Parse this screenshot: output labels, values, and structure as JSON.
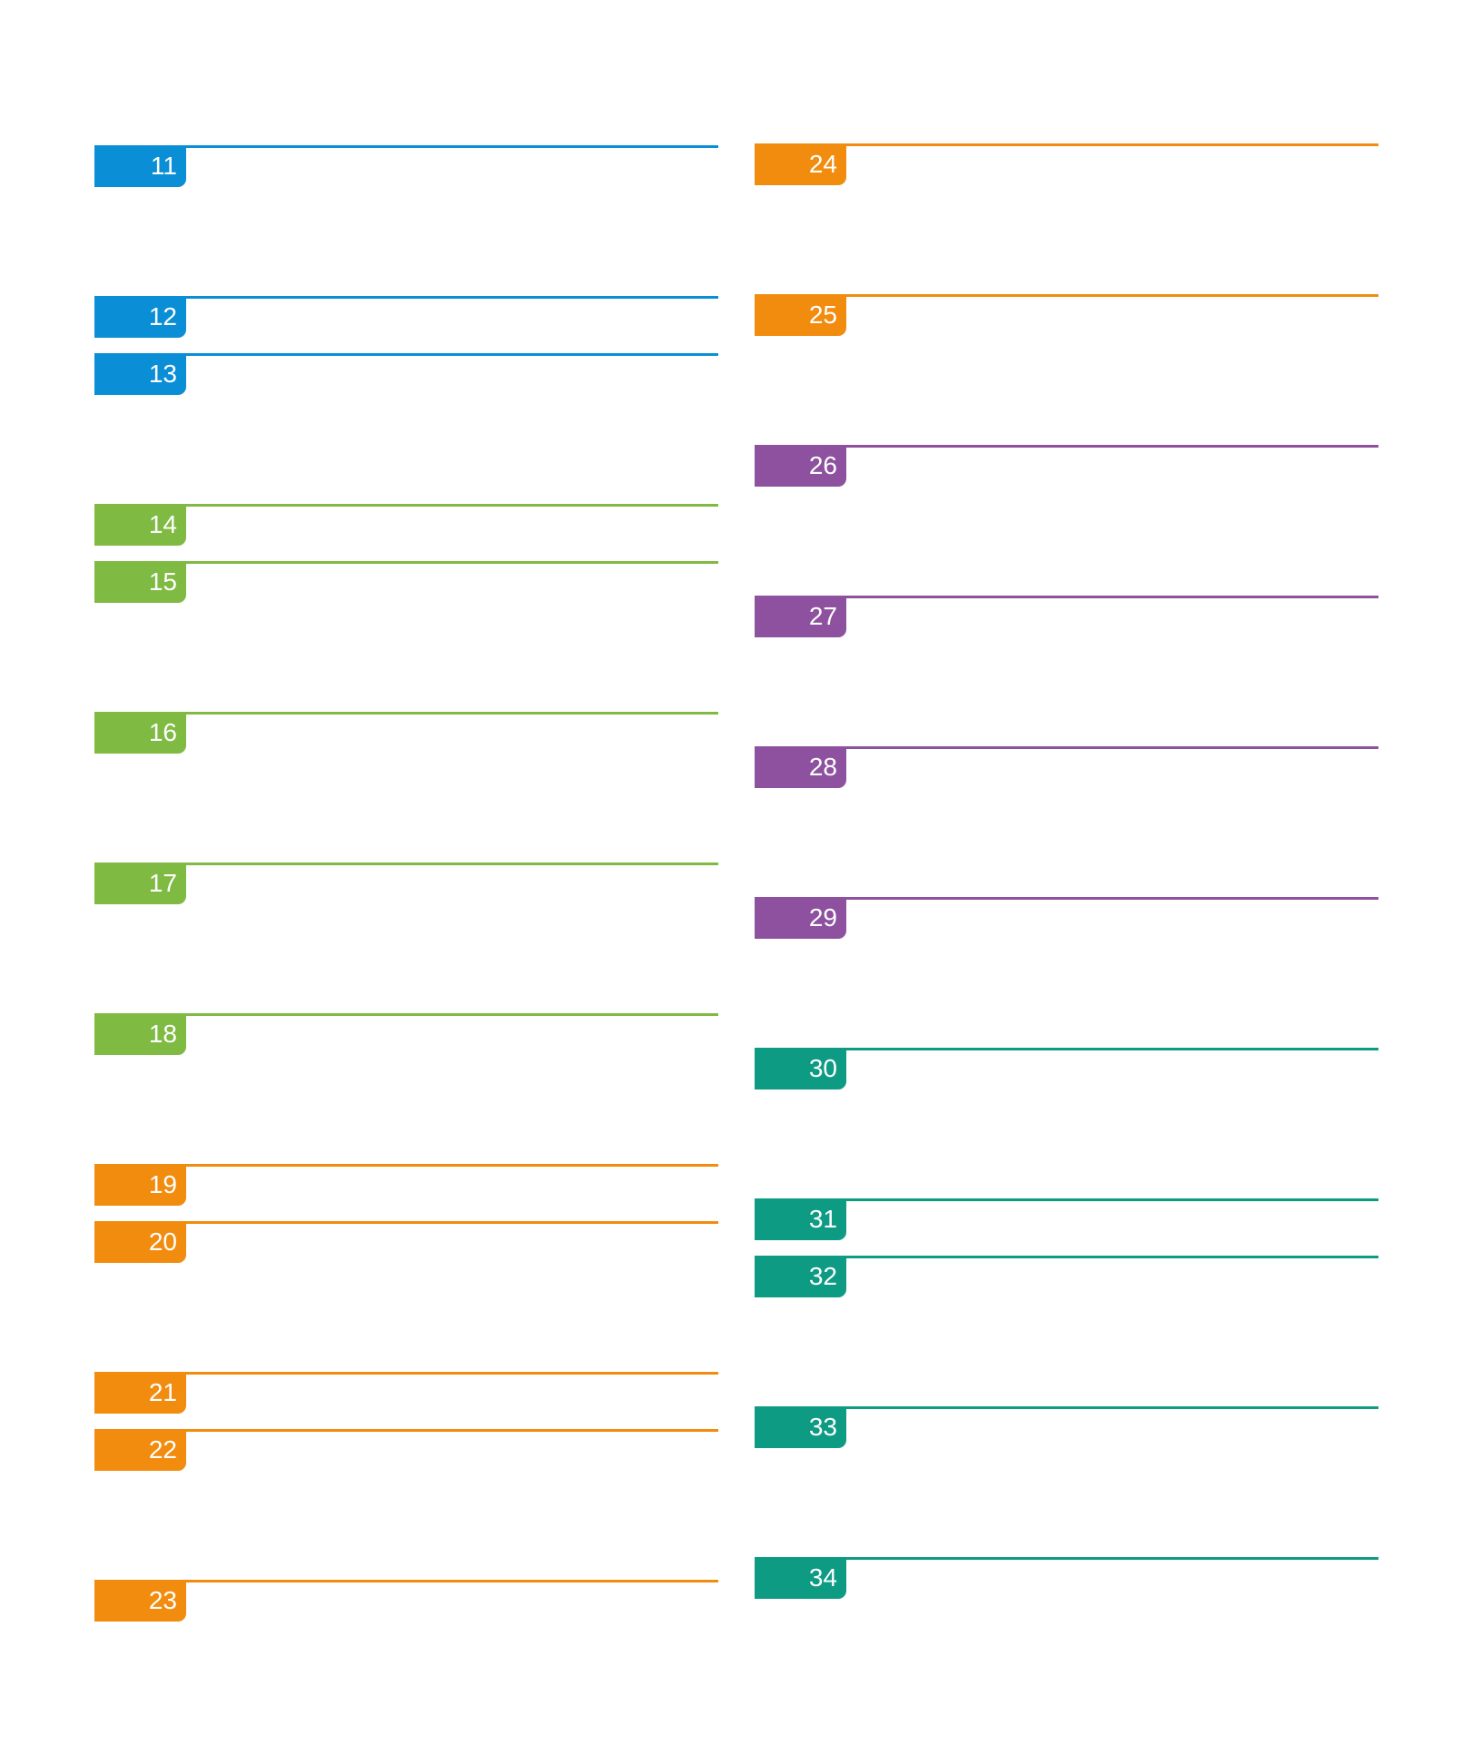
{
  "colors": {
    "blue": "#0a8ed6",
    "green": "#7fba42",
    "orange": "#f28c0f",
    "purple": "#8e519f",
    "teal": "#0e9b84"
  },
  "left_column": [
    {
      "number": "11",
      "color": "#0a8ed6"
    },
    {
      "number": "12",
      "color": "#0a8ed6"
    },
    {
      "number": "13",
      "color": "#0a8ed6"
    },
    {
      "number": "14",
      "color": "#7fba42"
    },
    {
      "number": "15",
      "color": "#7fba42"
    },
    {
      "number": "16",
      "color": "#7fba42"
    },
    {
      "number": "17",
      "color": "#7fba42"
    },
    {
      "number": "18",
      "color": "#7fba42"
    },
    {
      "number": "19",
      "color": "#f28c0f"
    },
    {
      "number": "20",
      "color": "#f28c0f"
    },
    {
      "number": "21",
      "color": "#f28c0f"
    },
    {
      "number": "22",
      "color": "#f28c0f"
    },
    {
      "number": "23",
      "color": "#f28c0f"
    }
  ],
  "right_column": [
    {
      "number": "24",
      "color": "#f28c0f"
    },
    {
      "number": "25",
      "color": "#f28c0f"
    },
    {
      "number": "26",
      "color": "#8e519f"
    },
    {
      "number": "27",
      "color": "#8e519f"
    },
    {
      "number": "28",
      "color": "#8e519f"
    },
    {
      "number": "29",
      "color": "#8e519f"
    },
    {
      "number": "30",
      "color": "#0e9b84"
    },
    {
      "number": "31",
      "color": "#0e9b84"
    },
    {
      "number": "32",
      "color": "#0e9b84"
    },
    {
      "number": "33",
      "color": "#0e9b84"
    },
    {
      "number": "34",
      "color": "#0e9b84"
    }
  ]
}
